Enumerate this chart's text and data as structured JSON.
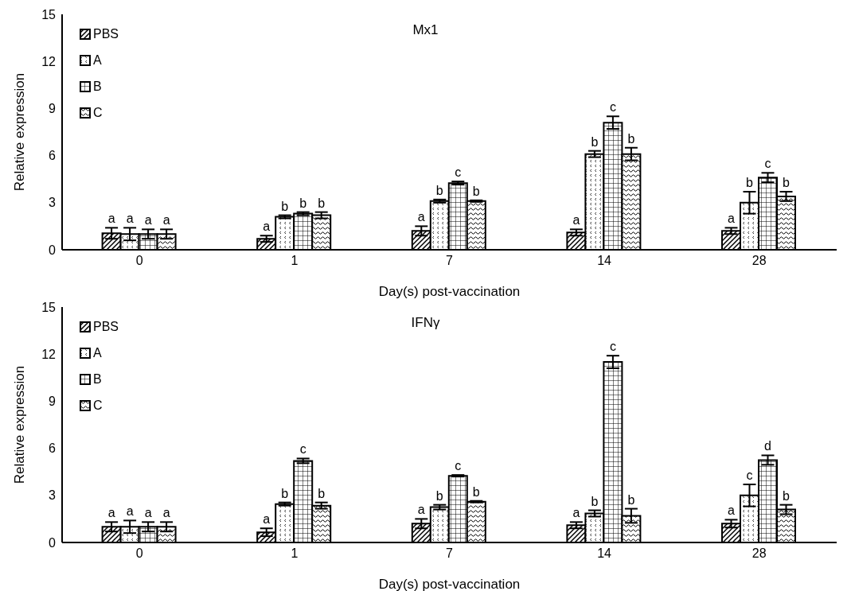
{
  "chart_data": [
    {
      "type": "bar",
      "title": "Mx1",
      "xlabel": "Day(s) post-vaccination",
      "ylabel": "Relative expression",
      "categories": [
        "0",
        "1",
        "7",
        "14",
        "28"
      ],
      "ylim": [
        0,
        15
      ],
      "yticks": [
        0,
        3,
        6,
        9,
        12,
        15
      ],
      "grid": false,
      "legend": "top left",
      "series": [
        {
          "name": "PBS",
          "color": "#000000",
          "values": [
            1.05,
            0.7,
            1.2,
            1.1,
            1.2
          ],
          "errors": [
            0.35,
            0.2,
            0.3,
            0.2,
            0.2
          ],
          "value_labels": [
            "a",
            "a",
            "a",
            "a",
            "a"
          ]
        },
        {
          "name": "A",
          "color": "#000000",
          "values": [
            1.0,
            2.1,
            3.1,
            6.1,
            3.0
          ],
          "errors": [
            0.4,
            0.1,
            0.1,
            0.2,
            0.7
          ],
          "value_labels": [
            "a",
            "b",
            "b",
            "b",
            "b"
          ]
        },
        {
          "name": "B",
          "color": "#000000",
          "values": [
            1.0,
            2.3,
            4.25,
            8.1,
            4.6
          ],
          "errors": [
            0.3,
            0.1,
            0.1,
            0.4,
            0.3
          ],
          "value_labels": [
            "a",
            "b",
            "c",
            "c",
            "c"
          ]
        },
        {
          "name": "C",
          "color": "#000000",
          "values": [
            1.0,
            2.2,
            3.1,
            6.1,
            3.4
          ],
          "errors": [
            0.3,
            0.2,
            0.05,
            0.4,
            0.3
          ],
          "value_labels": [
            "a",
            "b",
            "b",
            "b",
            "b"
          ]
        }
      ]
    },
    {
      "type": "bar",
      "title": "IFNγ",
      "xlabel": "Day(s) post-vaccination",
      "ylabel": "Relative expression",
      "categories": [
        "0",
        "1",
        "7",
        "14",
        "28"
      ],
      "ylim": [
        0,
        15
      ],
      "yticks": [
        0,
        3,
        6,
        9,
        12,
        15
      ],
      "grid": false,
      "legend": "top left",
      "series": [
        {
          "name": "PBS",
          "color": "#000000",
          "values": [
            1.0,
            0.65,
            1.2,
            1.1,
            1.2
          ],
          "errors": [
            0.3,
            0.25,
            0.3,
            0.2,
            0.25
          ],
          "value_labels": [
            "a",
            "a",
            "a",
            "a",
            "a"
          ]
        },
        {
          "name": "A",
          "color": "#000000",
          "values": [
            1.0,
            2.45,
            2.25,
            1.85,
            3.0
          ],
          "errors": [
            0.4,
            0.1,
            0.15,
            0.2,
            0.7
          ],
          "value_labels": [
            "a",
            "b",
            "b",
            "b",
            "c"
          ]
        },
        {
          "name": "B",
          "color": "#000000",
          "values": [
            1.0,
            5.2,
            4.25,
            11.5,
            5.25
          ],
          "errors": [
            0.3,
            0.15,
            0.05,
            0.4,
            0.3
          ],
          "value_labels": [
            "a",
            "c",
            "c",
            "c",
            "d"
          ]
        },
        {
          "name": "C",
          "color": "#000000",
          "values": [
            1.0,
            2.35,
            2.6,
            1.7,
            2.1
          ],
          "errors": [
            0.3,
            0.2,
            0.05,
            0.45,
            0.3
          ],
          "value_labels": [
            "a",
            "b",
            "b",
            "b",
            "b"
          ]
        }
      ]
    }
  ]
}
